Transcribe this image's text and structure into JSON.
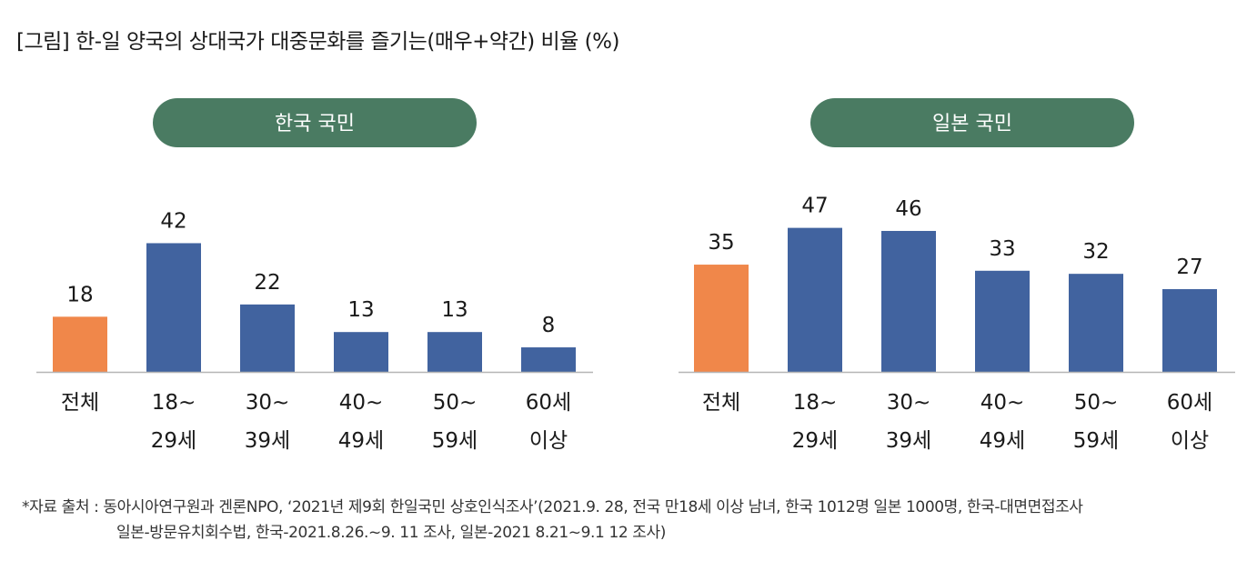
{
  "title": "[그림] 한-일 양국의 상대국가 대중문화를 즐기는(매우+약간) 비율 (%)",
  "colors": {
    "total": "#F0874A",
    "group": "#41639F",
    "header": "#4A7B62",
    "axis": "#b5b5b5"
  },
  "chart_data": [
    {
      "type": "bar",
      "title": "한국 국민",
      "categories": [
        [
          "전체"
        ],
        [
          "18~",
          "29세"
        ],
        [
          "30~",
          "39세"
        ],
        [
          "40~",
          "49세"
        ],
        [
          "50~",
          "59세"
        ],
        [
          "60세",
          "이상"
        ]
      ],
      "values": [
        18,
        42,
        22,
        13,
        13,
        8
      ],
      "ylim": [
        0,
        50
      ]
    },
    {
      "type": "bar",
      "title": "일본 국민",
      "categories": [
        [
          "전체"
        ],
        [
          "18~",
          "29세"
        ],
        [
          "30~",
          "39세"
        ],
        [
          "40~",
          "49세"
        ],
        [
          "50~",
          "59세"
        ],
        [
          "60세",
          "이상"
        ]
      ],
      "values": [
        35,
        47,
        46,
        33,
        32,
        27
      ],
      "ylim": [
        0,
        50
      ]
    }
  ],
  "source": {
    "line1": "*자료 출처 : 동아시아연구원과 겐론NPO, ‘2021년 제9회 한일국민 상호인식조사’(2021.9. 28, 전국 만18세 이상 남녀, 한국 1012명 일본 1000명, 한국-대면면접조사",
    "line2": "일본-방문유치회수법, 한국-2021.8.26.~9. 11 조사, 일본-2021 8.21~9.1 12 조사)"
  }
}
